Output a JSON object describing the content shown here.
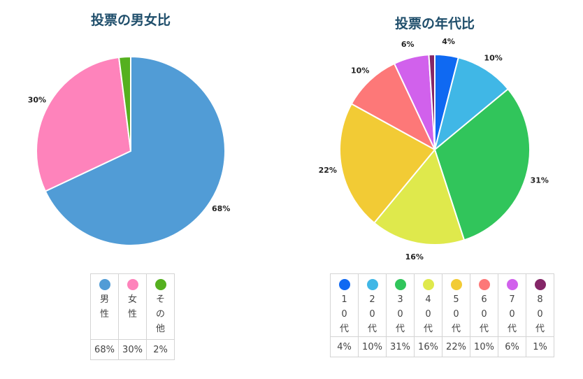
{
  "chart_data": [
    {
      "type": "pie",
      "title": "投票の男女比",
      "categories": [
        "男性",
        "女性",
        "その他"
      ],
      "values": [
        68,
        30,
        2
      ],
      "value_labels": [
        "68%",
        "30%",
        "2%"
      ],
      "slice_labels": [
        "68%",
        "30%",
        ""
      ],
      "colors": [
        "#519cd6",
        "#fe83bb",
        "#55b01f"
      ],
      "legend": "table-bottom"
    },
    {
      "type": "pie",
      "title": "投票の年代比",
      "categories": [
        "10代",
        "20代",
        "30代",
        "40代",
        "50代",
        "60代",
        "70代",
        "80代"
      ],
      "values": [
        4,
        10,
        31,
        16,
        22,
        10,
        6,
        1
      ],
      "value_labels": [
        "4%",
        "10%",
        "31%",
        "16%",
        "22%",
        "10%",
        "6%",
        "1%"
      ],
      "slice_labels": [
        "4%",
        "10%",
        "31%",
        "16%",
        "22%",
        "10%",
        "6%",
        ""
      ],
      "colors": [
        "#0f69f2",
        "#40b7e6",
        "#31c55b",
        "#dfe94c",
        "#f2cb35",
        "#fd7878",
        "#d161ec",
        "#842667"
      ],
      "legend": "table-bottom"
    }
  ]
}
